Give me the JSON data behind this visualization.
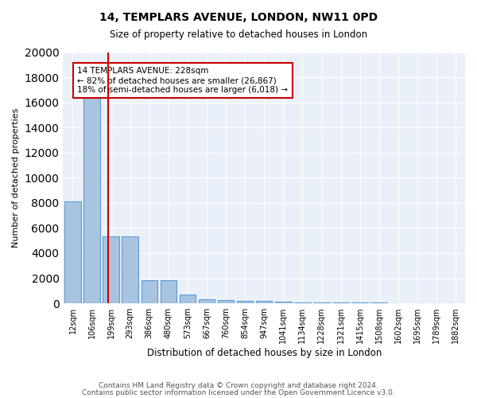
{
  "title1": "14, TEMPLARS AVENUE, LONDON, NW11 0PD",
  "title2": "Size of property relative to detached houses in London",
  "xlabel": "Distribution of detached houses by size in London",
  "ylabel": "Number of detached properties",
  "bar_color": "#a8c4e0",
  "bar_edge_color": "#5b9bd5",
  "bg_color": "#eaf0f8",
  "grid_color": "#ffffff",
  "categories": [
    "12sqm",
    "106sqm",
    "199sqm",
    "293sqm",
    "386sqm",
    "480sqm",
    "573sqm",
    "667sqm",
    "760sqm",
    "854sqm",
    "947sqm",
    "1041sqm",
    "1134sqm",
    "1228sqm",
    "1321sqm",
    "1415sqm",
    "1508sqm",
    "1602sqm",
    "1695sqm",
    "1789sqm",
    "1882sqm"
  ],
  "values": [
    8100,
    16500,
    5300,
    5300,
    1850,
    1850,
    700,
    300,
    250,
    200,
    200,
    150,
    100,
    80,
    60,
    50,
    40,
    30,
    25,
    20,
    15
  ],
  "red_line_x": 1.85,
  "annotation_text": "14 TEMPLARS AVENUE: 228sqm\n← 82% of detached houses are smaller (26,867)\n18% of semi-detached houses are larger (6,018) →",
  "annotation_box_color": "#ffffff",
  "annotation_border_color": "#cc0000",
  "ylim": [
    0,
    20000
  ],
  "yticks": [
    0,
    2000,
    4000,
    6000,
    8000,
    10000,
    12000,
    14000,
    16000,
    18000,
    20000
  ],
  "footer1": "Contains HM Land Registry data © Crown copyright and database right 2024.",
  "footer2": "Contains public sector information licensed under the Open Government Licence v3.0."
}
